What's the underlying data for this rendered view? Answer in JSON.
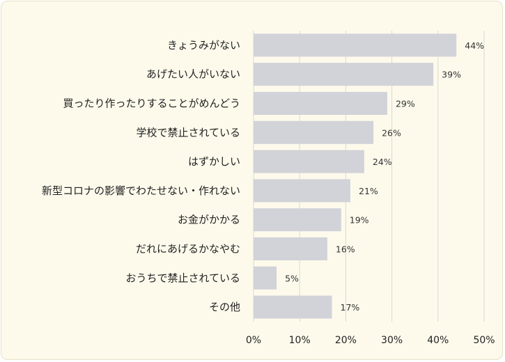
{
  "chart_data": {
    "type": "bar",
    "orientation": "horizontal",
    "categories": [
      "きょうみがない",
      "あげたい人がいない",
      "買ったり作ったりすることがめんどう",
      "学校で禁止されている",
      "はずかしい",
      "新型コロナの影響でわたせない・作れない",
      "お金がかかる",
      "だれにあげるかなやむ",
      "おうちで禁止されている",
      "その他"
    ],
    "values": [
      44,
      39,
      29,
      26,
      24,
      21,
      19,
      16,
      5,
      17
    ],
    "value_labels": [
      "44%",
      "39%",
      "29%",
      "26%",
      "24%",
      "21%",
      "19%",
      "16%",
      "5%",
      "17%"
    ],
    "xlim": [
      0,
      50
    ],
    "xticks": [
      0,
      10,
      20,
      30,
      40,
      50
    ],
    "xtick_labels": [
      "0%",
      "10%",
      "20%",
      "30%",
      "40%",
      "50%"
    ],
    "grid": "vertical",
    "bar_color": "#d2d3d8",
    "grid_color": "#d9d9d0",
    "background_color": "#fdfaec"
  }
}
